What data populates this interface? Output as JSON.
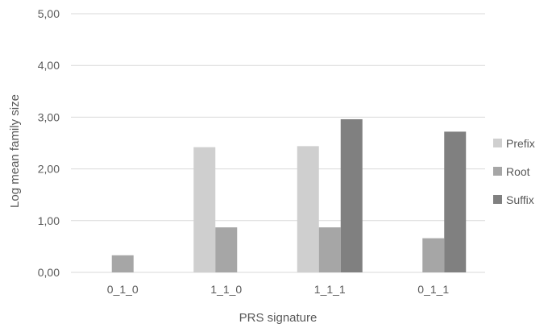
{
  "chart_data": {
    "type": "bar",
    "title": "",
    "xlabel": "PRS signature",
    "ylabel": "Log mean family size",
    "categories": [
      "0_1_0",
      "1_1_0",
      "1_1_1",
      "0_1_1"
    ],
    "ylim": [
      0,
      5
    ],
    "yticks": [
      "0,00",
      "1,00",
      "2,00",
      "3,00",
      "4,00",
      "5,00"
    ],
    "grid": true,
    "legend_position": "right",
    "series": [
      {
        "name": "Prefix",
        "color": "#cfcfcf",
        "values": [
          0,
          2.42,
          2.44,
          0
        ]
      },
      {
        "name": "Root",
        "color": "#a6a6a6",
        "values": [
          0.33,
          0.87,
          0.87,
          0.66
        ]
      },
      {
        "name": "Suffix",
        "color": "#808080",
        "values": [
          0,
          0,
          2.96,
          2.72
        ]
      }
    ]
  }
}
